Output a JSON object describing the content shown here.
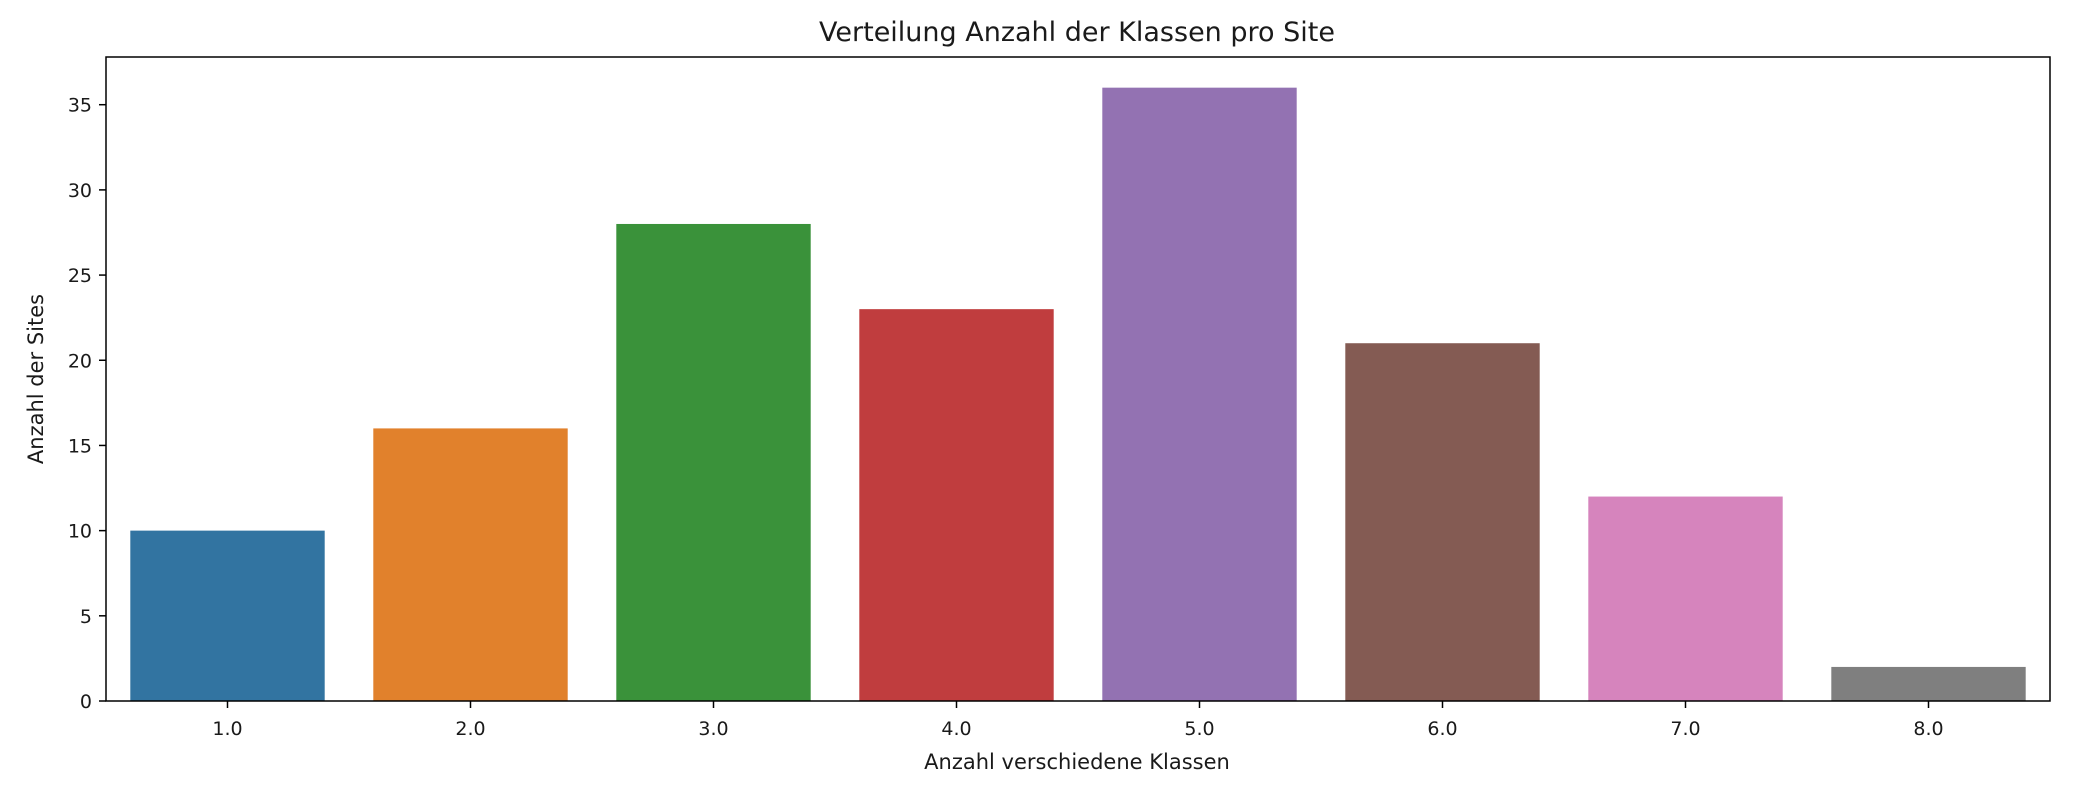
{
  "chart_data": {
    "type": "bar",
    "title": "Verteilung Anzahl der Klassen pro Site",
    "xlabel": "Anzahl verschiedene Klassen",
    "ylabel": "Anzahl der Sites",
    "categories": [
      "1.0",
      "2.0",
      "3.0",
      "4.0",
      "5.0",
      "6.0",
      "7.0",
      "8.0"
    ],
    "values": [
      10,
      16,
      28,
      23,
      36,
      21,
      12,
      2
    ],
    "colors": [
      "#3274a1",
      "#e1812c",
      "#3a923a",
      "#c03d3e",
      "#9372b2",
      "#845b53",
      "#d684bd",
      "#7f7f7f"
    ],
    "ylim": [
      0,
      37.8
    ],
    "yticks": [
      0,
      5,
      10,
      15,
      20,
      25,
      30,
      35
    ],
    "grid": false,
    "legend": "none"
  }
}
